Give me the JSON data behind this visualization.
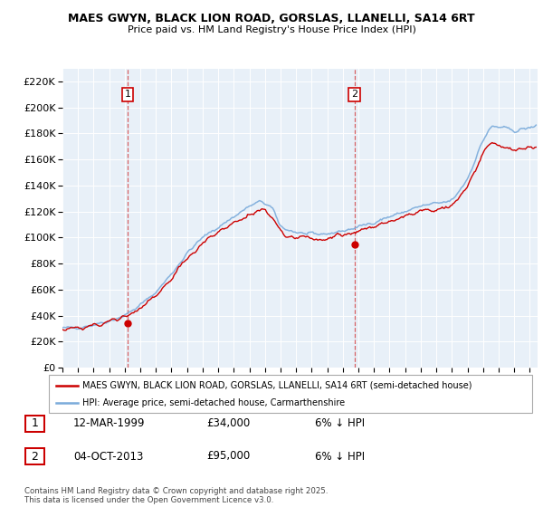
{
  "title": "MAES GWYN, BLACK LION ROAD, GORSLAS, LLANELLI, SA14 6RT",
  "subtitle": "Price paid vs. HM Land Registry's House Price Index (HPI)",
  "transactions": [
    {
      "label": "1",
      "date_num": 1999.19,
      "price": 34000,
      "pct": "6% ↓ HPI",
      "date_str": "12-MAR-1999"
    },
    {
      "label": "2",
      "date_num": 2013.75,
      "price": 95000,
      "pct": "6% ↓ HPI",
      "date_str": "04-OCT-2013"
    }
  ],
  "legend_line1": "MAES GWYN, BLACK LION ROAD, GORSLAS, LLANELLI, SA14 6RT (semi-detached house)",
  "legend_line2": "HPI: Average price, semi-detached house, Carmarthenshire",
  "footer": "Contains HM Land Registry data © Crown copyright and database right 2025.\nThis data is licensed under the Open Government Licence v3.0.",
  "price_color": "#cc0000",
  "hpi_color": "#7aabdb",
  "ylim": [
    0,
    230000
  ],
  "yticks": [
    0,
    20000,
    40000,
    60000,
    80000,
    100000,
    120000,
    140000,
    160000,
    180000,
    200000,
    220000
  ],
  "xmin": 1995.0,
  "xmax": 2025.5,
  "hpi_keypoints_x": [
    1995.0,
    1996.0,
    1997.0,
    1998.0,
    1999.0,
    2000.0,
    2001.0,
    2002.0,
    2003.0,
    2004.0,
    2005.0,
    2006.0,
    2007.0,
    2007.8,
    2008.5,
    2009.0,
    2010.0,
    2011.0,
    2012.0,
    2013.0,
    2014.0,
    2015.0,
    2016.0,
    2017.0,
    2018.0,
    2019.0,
    2020.0,
    2021.0,
    2021.5,
    2022.0,
    2022.5,
    2023.0,
    2024.0,
    2025.3
  ],
  "hpi_keypoints_y": [
    30000,
    31000,
    33000,
    36000,
    40000,
    48000,
    58000,
    72000,
    88000,
    100000,
    108000,
    116000,
    124000,
    128000,
    122000,
    108000,
    104000,
    102000,
    103000,
    105000,
    108000,
    112000,
    116000,
    120000,
    124000,
    126000,
    128000,
    145000,
    160000,
    175000,
    185000,
    185000,
    182000,
    185000
  ],
  "price_keypoints_x": [
    1995.0,
    1996.0,
    1997.0,
    1998.0,
    1999.0,
    2000.0,
    2001.0,
    2002.0,
    2003.0,
    2004.0,
    2005.0,
    2006.0,
    2007.0,
    2007.8,
    2008.5,
    2009.0,
    2010.0,
    2011.0,
    2012.0,
    2013.0,
    2014.0,
    2015.0,
    2016.0,
    2017.0,
    2018.0,
    2019.0,
    2020.0,
    2021.0,
    2021.5,
    2022.0,
    2022.5,
    2023.0,
    2024.0,
    2025.3
  ],
  "price_keypoints_y": [
    29000,
    30000,
    32000,
    35000,
    38000,
    46000,
    55000,
    68000,
    84000,
    96000,
    104000,
    112000,
    118000,
    122000,
    116000,
    103000,
    100000,
    99000,
    100000,
    102000,
    105000,
    108000,
    112000,
    116000,
    120000,
    122000,
    124000,
    138000,
    152000,
    165000,
    172000,
    170000,
    167000,
    170000
  ]
}
